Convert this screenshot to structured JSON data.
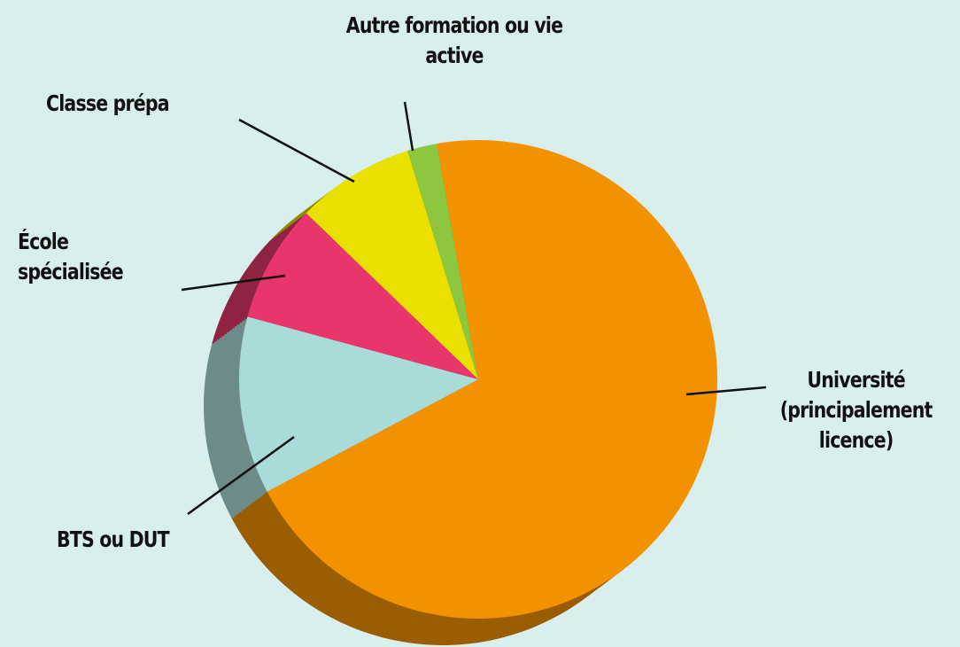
{
  "chart_data": {
    "type": "pie",
    "categories": [
      "Université (principalement licence)",
      "BTS ou DUT",
      "École spécialisée",
      "Classe prépa",
      "Autre formation ou vie active"
    ],
    "values": [
      70,
      12,
      8,
      8,
      2
    ],
    "colors": [
      "#f39200",
      "#a9dbd9",
      "#e8356b",
      "#e9e000",
      "#8dc63f"
    ],
    "side_colors": [
      "#9a5d00",
      "#6d8b89",
      "#8f2442",
      "#8f8a00",
      "#55781f"
    ]
  }
}
